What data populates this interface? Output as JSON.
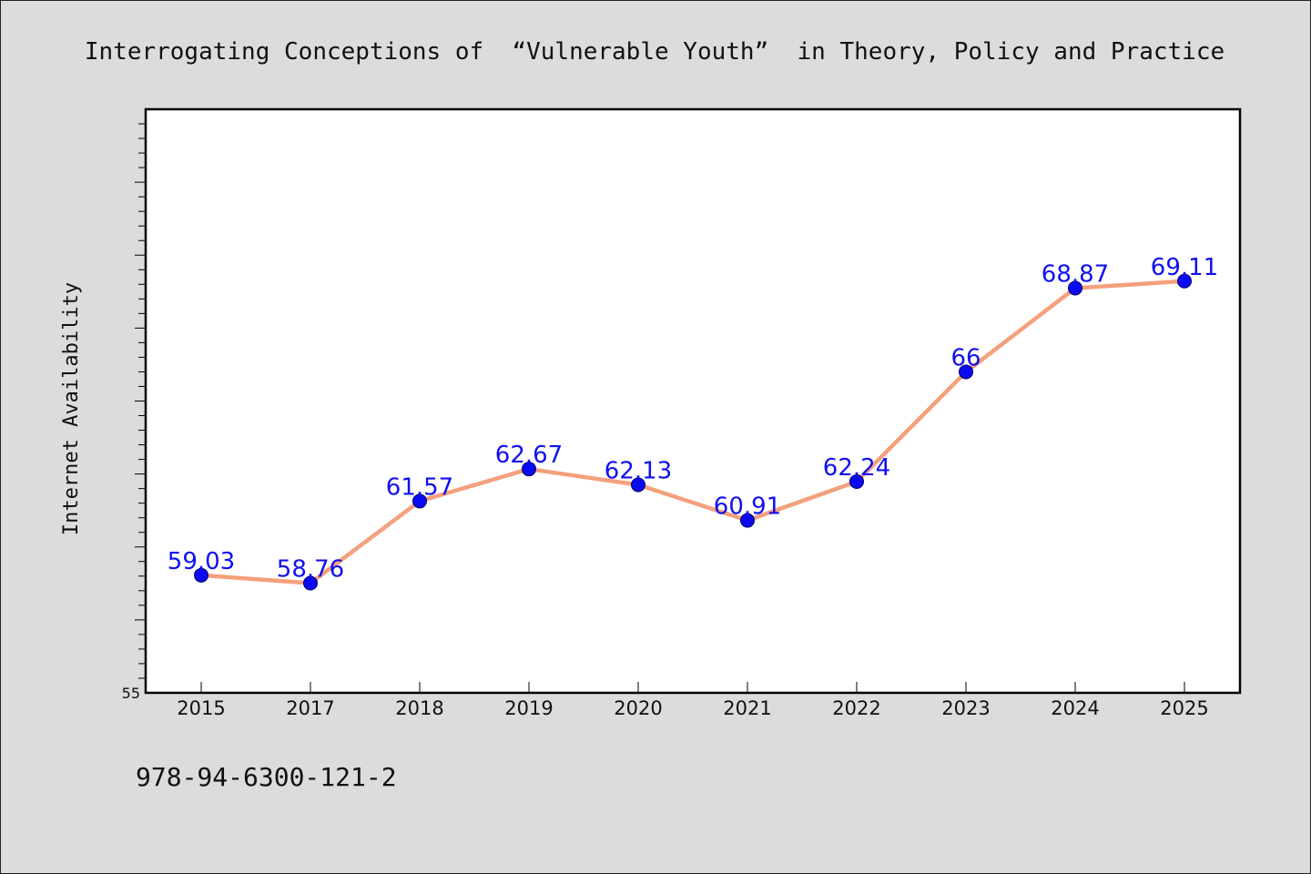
{
  "chart_data": {
    "type": "line",
    "title": "Interrogating Conceptions of  “Vulnerable Youth”  in Theory, Policy and Practice",
    "xlabel": "",
    "ylabel": "Internet Availability",
    "categories": [
      "2015",
      "2017",
      "2018",
      "2019",
      "2020",
      "2021",
      "2022",
      "2023",
      "2024",
      "2025"
    ],
    "series": [
      {
        "values": [
          59.03,
          58.76,
          61.57,
          62.67,
          62.13,
          60.91,
          62.24,
          66,
          68.87,
          69.11
        ],
        "data_labels": [
          "59.03",
          "58.76",
          "61.57",
          "62.67",
          "62.13",
          "60.91",
          "62.24",
          "66",
          "68.87",
          "69.11"
        ],
        "line_color": "#f4a07c",
        "marker_color": "#0a0af0"
      }
    ],
    "y_tick_labels": [
      "55"
    ],
    "ylim": [
      55,
      75
    ],
    "grid": false,
    "legend": "none"
  },
  "footer": {
    "isbn": "978-94-6300-121-2"
  }
}
